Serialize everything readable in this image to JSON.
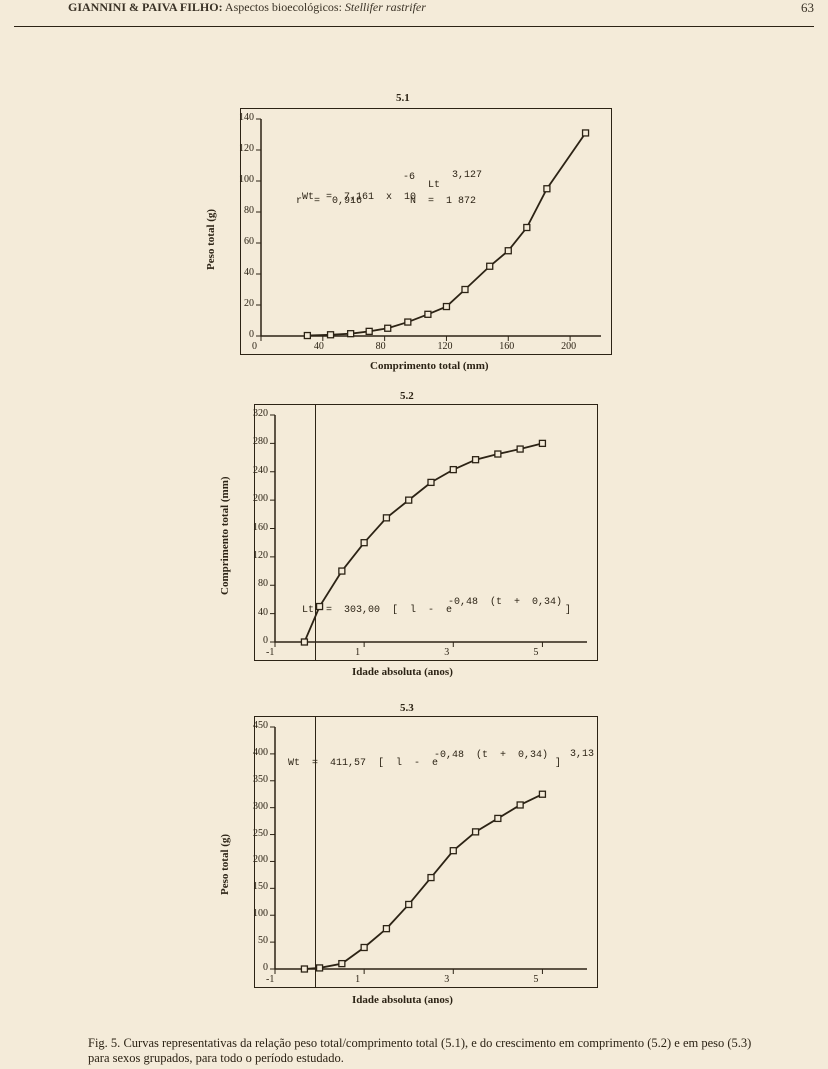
{
  "header": {
    "authors": "GIANNINI & PAIVA FILHO:",
    "subject": "Aspectos bioecológicos:",
    "species": "Stellifer rastrifer",
    "page": "63"
  },
  "chart1": {
    "title": "5.1",
    "xlabel": "Comprimento total (mm)",
    "ylabel": "Peso total (g)",
    "xlim": [
      0,
      220
    ],
    "ylim": [
      0,
      140
    ],
    "xticks": [
      0,
      40,
      80,
      120,
      160,
      200
    ],
    "yticks": [
      0,
      20,
      40,
      60,
      80,
      100,
      120,
      140
    ],
    "eq1": "Wt  =  7,161  x  10",
    "eq1_sup": "-6",
    "eq1_tail": "Lt",
    "eq1_tail_sup": "3,127",
    "eq2": "r  =  0,916",
    "eq2b": "N  =  1 872",
    "points": [
      [
        30,
        0.3
      ],
      [
        45,
        0.8
      ],
      [
        58,
        1.5
      ],
      [
        70,
        3
      ],
      [
        82,
        5
      ],
      [
        95,
        9
      ],
      [
        108,
        14
      ],
      [
        120,
        19
      ],
      [
        132,
        30
      ],
      [
        148,
        45
      ],
      [
        160,
        55
      ],
      [
        172,
        70
      ],
      [
        185,
        95
      ],
      [
        210,
        131
      ]
    ]
  },
  "chart2": {
    "title": "5.2",
    "xlabel": "Idade  absoluta (anos)",
    "ylabel": "Comprimento  total  (mm)",
    "xlim": [
      -1,
      6
    ],
    "ylim": [
      0,
      320
    ],
    "xticks": [
      -1,
      1,
      3,
      5
    ],
    "yticks": [
      0,
      40,
      80,
      120,
      160,
      200,
      240,
      280,
      320
    ],
    "eq": "Lt  =  303,00  [  l  -  e",
    "eq_sup": "-0,48  (t  +  0,34)",
    "eq_tail": "]",
    "points": [
      [
        -0.34,
        0
      ],
      [
        0,
        50
      ],
      [
        0.5,
        100
      ],
      [
        1,
        140
      ],
      [
        1.5,
        175
      ],
      [
        2,
        200
      ],
      [
        2.5,
        225
      ],
      [
        3,
        243
      ],
      [
        3.5,
        257
      ],
      [
        4,
        265
      ],
      [
        4.5,
        272
      ],
      [
        5,
        280
      ]
    ]
  },
  "chart3": {
    "title": "5.3",
    "xlabel": "Idade  absoluta (anos)",
    "ylabel": "Peso total (g)",
    "xlim": [
      -1,
      6
    ],
    "ylim": [
      0,
      450
    ],
    "xticks": [
      -1,
      1,
      3,
      5
    ],
    "yticks": [
      0,
      50,
      100,
      150,
      200,
      250,
      300,
      350,
      400,
      450
    ],
    "eq": "Wt  =  411,57  [  l  -  e",
    "eq_sup": "-0,48  (t  +  0,34)",
    "eq_tail": "]",
    "eq_outer": "3,13",
    "points": [
      [
        -0.34,
        0
      ],
      [
        0,
        2
      ],
      [
        0.5,
        10
      ],
      [
        1,
        40
      ],
      [
        1.5,
        75
      ],
      [
        2,
        120
      ],
      [
        2.5,
        170
      ],
      [
        3,
        220
      ],
      [
        3.5,
        255
      ],
      [
        4,
        280
      ],
      [
        4.5,
        305
      ],
      [
        5,
        325
      ]
    ]
  },
  "caption": {
    "label": "Fig. 5.",
    "text": "Curvas  representativas  da  relação  peso  total/comprimento total  (5.1),  e do crescimento  em  comprimento (5.2)  e em peso (5.3)  para  sexos  grupados,  para todo  o período  estudado."
  }
}
